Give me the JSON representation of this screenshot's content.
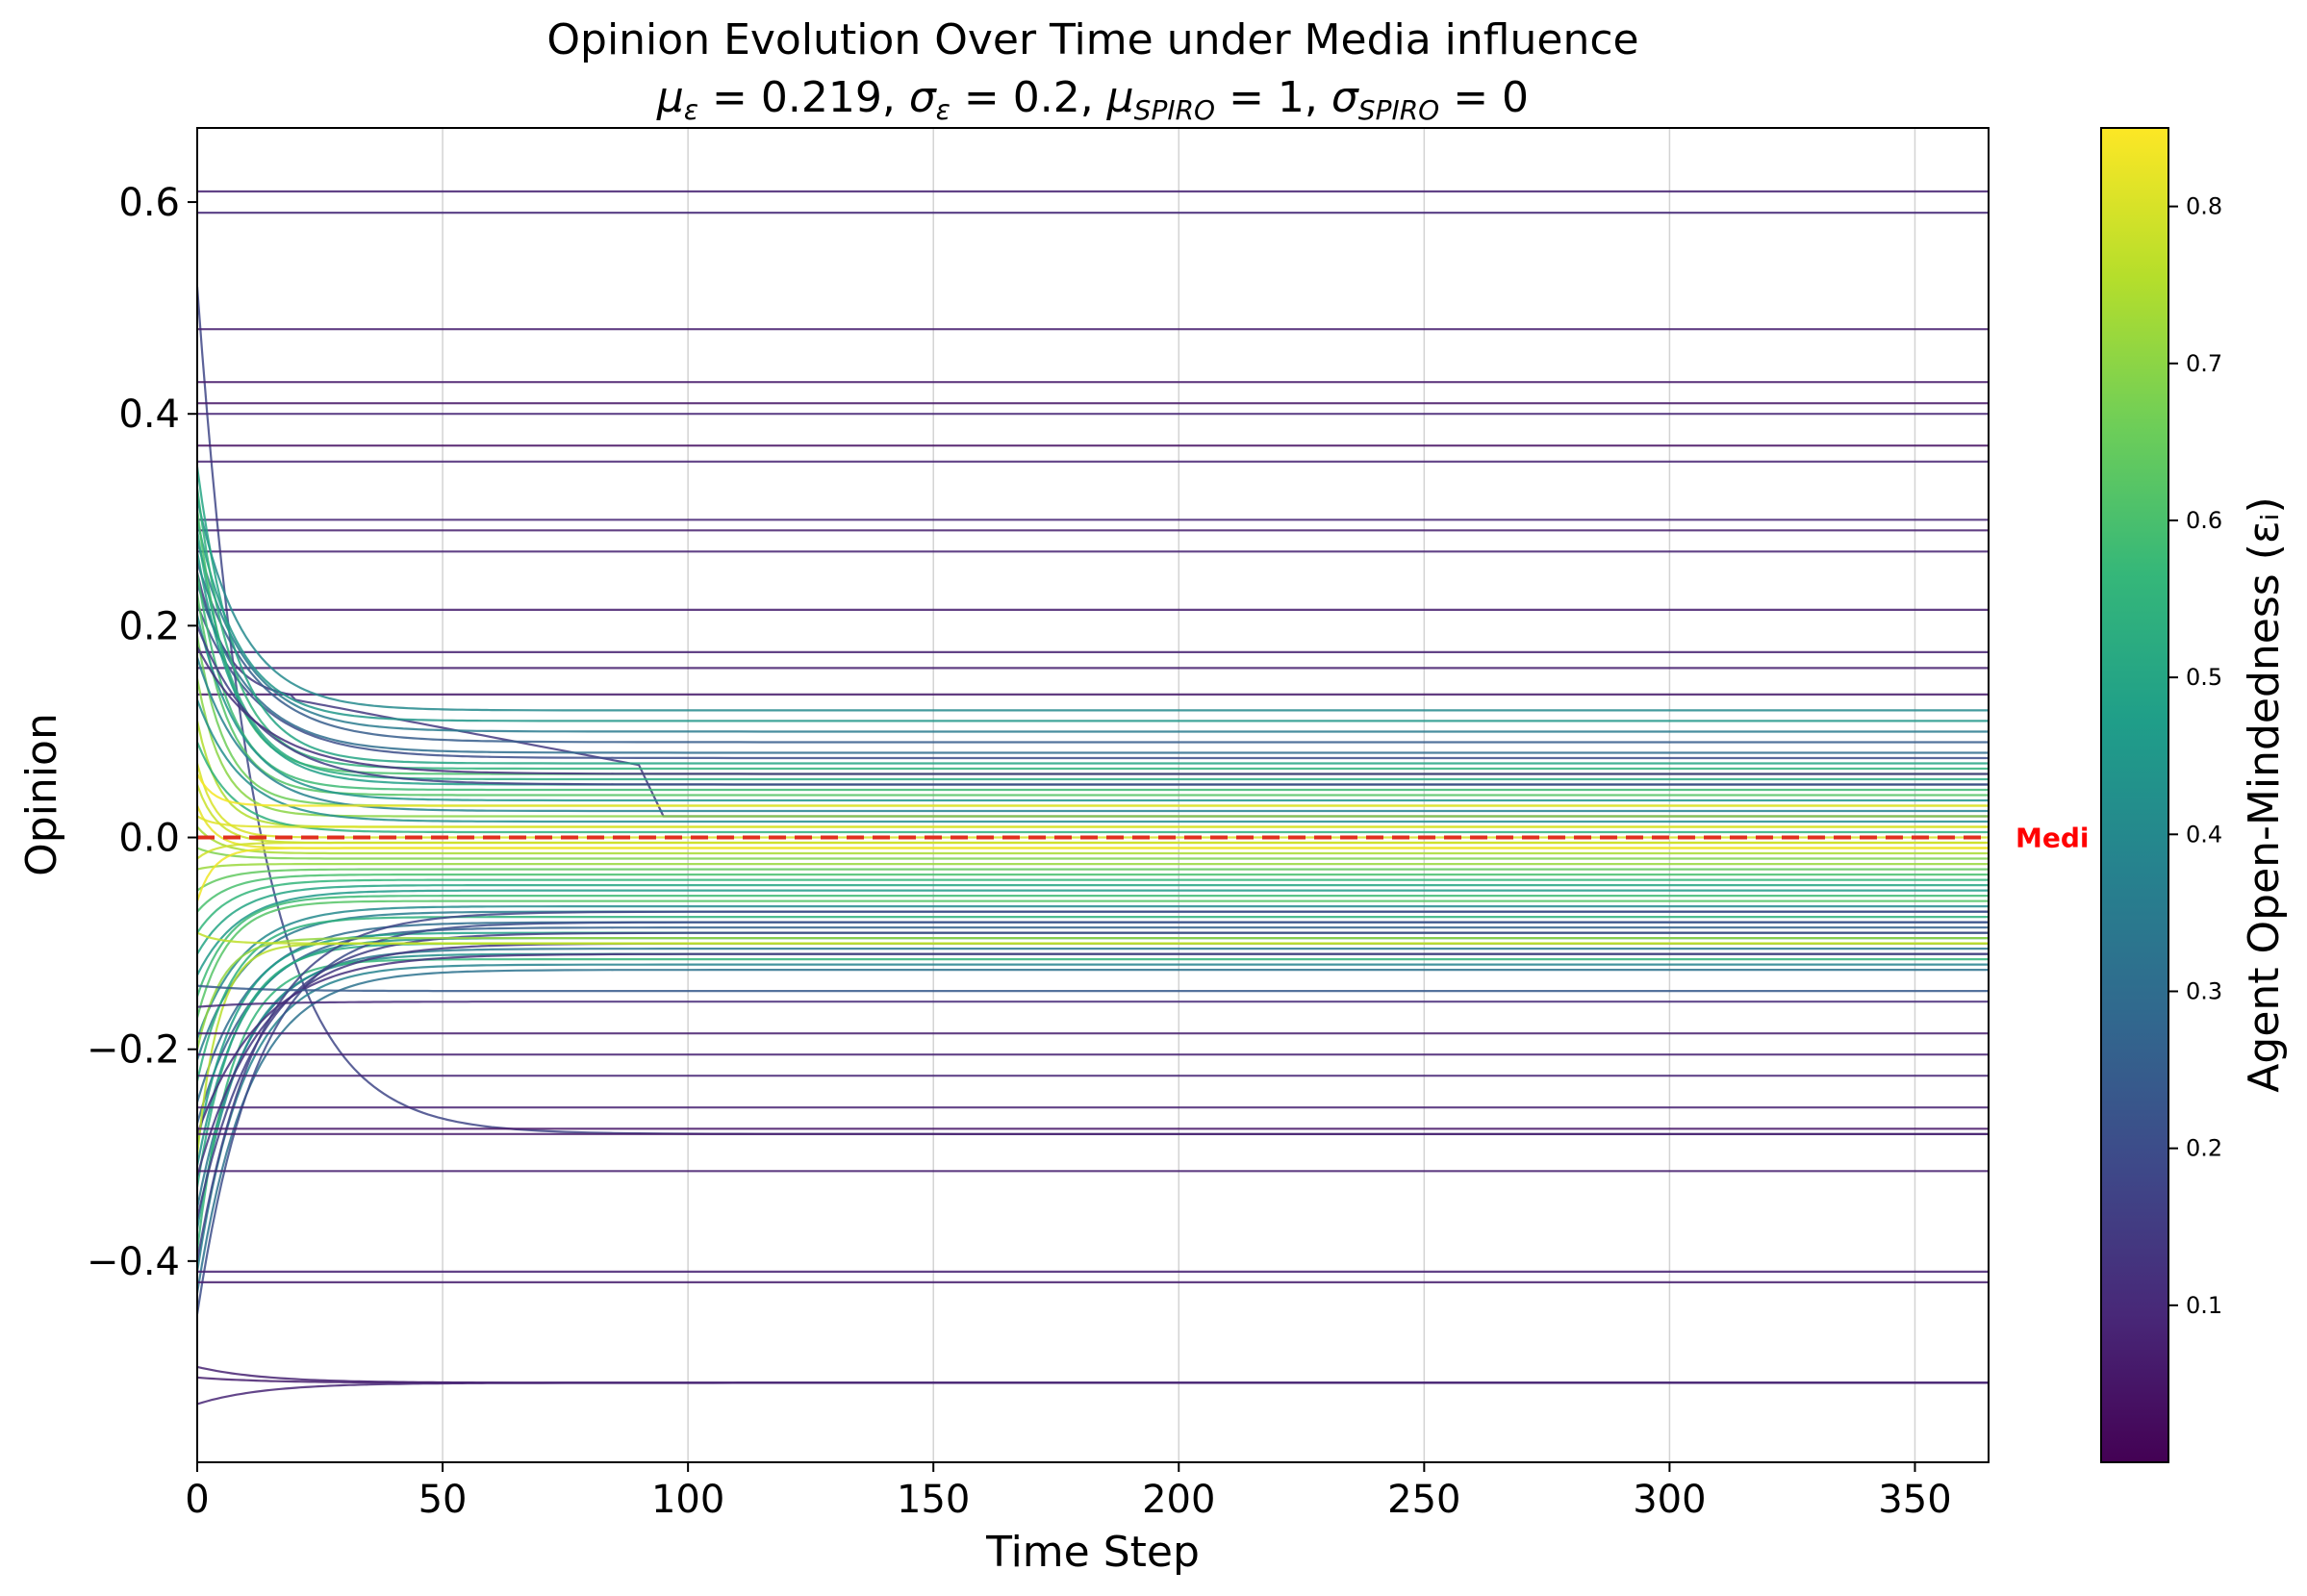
{
  "chart_data": {
    "type": "line",
    "title": "Opinion Evolution Over Time under Media influence",
    "subtitle": {
      "mu_eps_label": "μ",
      "eps_sub": "ε",
      "mu_eps_value": " = 0.219, ",
      "sigma_eps_label": "σ",
      "sigma_eps_value": " = 0.2, ",
      "mu_spiro_label": "μ",
      "spiro_sub": "SPIRO",
      "mu_spiro_value": " = 1, ",
      "sigma_spiro_label": "σ",
      "sigma_spiro_value": " = 0"
    },
    "xlabel": "Time Step",
    "ylabel": "Opinion",
    "xlim": [
      0,
      365
    ],
    "ylim": [
      -0.59,
      0.67
    ],
    "xticks": [
      0,
      50,
      100,
      150,
      200,
      250,
      300,
      350
    ],
    "xtick_labels": [
      "0",
      "50",
      "100",
      "150",
      "200",
      "250",
      "300",
      "350"
    ],
    "yticks": [
      -0.4,
      -0.2,
      0.0,
      0.2,
      0.4,
      0.6
    ],
    "ytick_labels": [
      "−0.4",
      "−0.2",
      "0.0",
      "0.2",
      "0.4",
      "0.6"
    ],
    "grid": "x-only",
    "media_line": {
      "value": 0.0,
      "label": "Medi",
      "color": "#ff0000"
    },
    "colorbar": {
      "label": "Agent Open-Mindedness (εᵢ)",
      "range": [
        0.0,
        0.85
      ],
      "ticks": [
        0.1,
        0.2,
        0.3,
        0.4,
        0.5,
        0.6,
        0.7,
        0.8
      ],
      "tick_labels": [
        "0.1",
        "0.2",
        "0.3",
        "0.4",
        "0.5",
        "0.6",
        "0.7",
        "0.8"
      ],
      "colormap": "viridis"
    },
    "series": [
      {
        "start": 0.61,
        "final": 0.61,
        "eps": 0.08
      },
      {
        "start": 0.59,
        "final": 0.59,
        "eps": 0.1
      },
      {
        "start": 0.52,
        "final": -0.28,
        "eps": 0.18
      },
      {
        "start": 0.48,
        "final": 0.48,
        "eps": 0.07
      },
      {
        "start": 0.43,
        "final": 0.43,
        "eps": 0.06
      },
      {
        "start": 0.41,
        "final": 0.41,
        "eps": 0.05
      },
      {
        "start": 0.4,
        "final": 0.4,
        "eps": 0.09
      },
      {
        "start": 0.37,
        "final": 0.37,
        "eps": 0.04
      },
      {
        "start": 0.355,
        "final": 0.355,
        "eps": 0.08
      },
      {
        "start": 0.3,
        "final": 0.3,
        "eps": 0.09
      },
      {
        "start": 0.29,
        "final": 0.29,
        "eps": 0.07
      },
      {
        "start": 0.27,
        "final": 0.27,
        "eps": 0.08
      },
      {
        "start": 0.215,
        "final": 0.215,
        "eps": 0.07
      },
      {
        "start": 0.175,
        "final": 0.175,
        "eps": 0.08
      },
      {
        "start": 0.16,
        "final": 0.16,
        "eps": 0.07
      },
      {
        "start": 0.135,
        "final": 0.135,
        "eps": 0.06
      },
      {
        "start": 0.25,
        "final": 0.02,
        "eps": 0.14,
        "mid": 0.13,
        "cross": 95
      },
      {
        "start": 0.32,
        "final": 0.12,
        "eps": 0.4
      },
      {
        "start": 0.3,
        "final": 0.11,
        "eps": 0.45
      },
      {
        "start": 0.28,
        "final": 0.1,
        "eps": 0.35
      },
      {
        "start": 0.26,
        "final": 0.09,
        "eps": 0.25
      },
      {
        "start": 0.24,
        "final": 0.08,
        "eps": 0.3
      },
      {
        "start": 0.22,
        "final": 0.075,
        "eps": 0.2
      },
      {
        "start": 0.35,
        "final": 0.07,
        "eps": 0.5
      },
      {
        "start": 0.33,
        "final": 0.065,
        "eps": 0.55
      },
      {
        "start": 0.31,
        "final": 0.06,
        "eps": 0.6
      },
      {
        "start": 0.29,
        "final": 0.055,
        "eps": 0.52
      },
      {
        "start": 0.27,
        "final": 0.05,
        "eps": 0.48
      },
      {
        "start": 0.25,
        "final": 0.045,
        "eps": 0.58
      },
      {
        "start": 0.23,
        "final": 0.04,
        "eps": 0.62
      },
      {
        "start": 0.21,
        "final": 0.035,
        "eps": 0.44
      },
      {
        "start": 0.19,
        "final": 0.03,
        "eps": 0.66
      },
      {
        "start": 0.17,
        "final": 0.025,
        "eps": 0.38
      },
      {
        "start": 0.15,
        "final": 0.02,
        "eps": 0.7
      },
      {
        "start": 0.13,
        "final": 0.015,
        "eps": 0.42
      },
      {
        "start": 0.11,
        "final": 0.01,
        "eps": 0.75
      },
      {
        "start": 0.09,
        "final": 0.005,
        "eps": 0.54
      },
      {
        "start": 0.07,
        "final": 0.0,
        "eps": 0.8
      },
      {
        "start": 0.05,
        "final": -0.005,
        "eps": 0.78
      },
      {
        "start": 0.03,
        "final": -0.01,
        "eps": 0.82
      },
      {
        "start": 0.01,
        "final": -0.015,
        "eps": 0.74
      },
      {
        "start": -0.01,
        "final": -0.02,
        "eps": 0.68
      },
      {
        "start": -0.03,
        "final": -0.025,
        "eps": 0.72
      },
      {
        "start": -0.05,
        "final": -0.03,
        "eps": 0.64
      },
      {
        "start": -0.07,
        "final": -0.035,
        "eps": 0.6
      },
      {
        "start": -0.09,
        "final": -0.04,
        "eps": 0.56
      },
      {
        "start": -0.11,
        "final": -0.045,
        "eps": 0.5
      },
      {
        "start": -0.13,
        "final": -0.05,
        "eps": 0.46
      },
      {
        "start": -0.15,
        "final": -0.055,
        "eps": 0.58
      },
      {
        "start": -0.17,
        "final": -0.06,
        "eps": 0.62
      },
      {
        "start": -0.19,
        "final": -0.065,
        "eps": 0.4
      },
      {
        "start": -0.21,
        "final": -0.07,
        "eps": 0.36
      },
      {
        "start": -0.23,
        "final": -0.075,
        "eps": 0.54
      },
      {
        "start": -0.25,
        "final": -0.08,
        "eps": 0.3
      },
      {
        "start": -0.27,
        "final": -0.085,
        "eps": 0.26
      },
      {
        "start": -0.29,
        "final": -0.09,
        "eps": 0.48
      },
      {
        "start": -0.31,
        "final": -0.095,
        "eps": 0.44
      },
      {
        "start": -0.33,
        "final": -0.1,
        "eps": 0.52
      },
      {
        "start": -0.35,
        "final": -0.105,
        "eps": 0.34
      },
      {
        "start": -0.37,
        "final": -0.11,
        "eps": 0.42
      },
      {
        "start": -0.39,
        "final": -0.115,
        "eps": 0.56
      },
      {
        "start": -0.41,
        "final": -0.12,
        "eps": 0.38
      },
      {
        "start": -0.43,
        "final": -0.125,
        "eps": 0.32
      },
      {
        "start": -0.45,
        "final": -0.08,
        "eps": 0.2
      },
      {
        "start": -0.4,
        "final": -0.07,
        "eps": 0.18
      },
      {
        "start": -0.36,
        "final": -0.09,
        "eps": 0.16
      },
      {
        "start": -0.32,
        "final": -0.1,
        "eps": 0.14
      },
      {
        "start": -0.28,
        "final": -0.11,
        "eps": 0.12
      },
      {
        "start": 0.2,
        "final": 0.05,
        "eps": 0.16
      },
      {
        "start": 0.18,
        "final": 0.06,
        "eps": 0.12
      },
      {
        "start": 0.06,
        "final": 0.03,
        "eps": 0.84
      },
      {
        "start": -0.06,
        "final": -0.01,
        "eps": 0.83
      },
      {
        "start": 0.02,
        "final": 0.01,
        "eps": 0.81
      },
      {
        "start": -0.02,
        "final": -0.005,
        "eps": 0.79
      },
      {
        "start": -0.3,
        "final": -0.1,
        "eps": 0.76
      },
      {
        "start": -0.2,
        "final": -0.095,
        "eps": 0.71
      },
      {
        "start": -0.09,
        "final": -0.1,
        "eps": 0.77
      },
      {
        "start": -0.14,
        "final": -0.145,
        "eps": 0.24
      },
      {
        "start": -0.16,
        "final": -0.155,
        "eps": 0.1
      },
      {
        "start": -0.185,
        "final": -0.185,
        "eps": 0.07
      },
      {
        "start": -0.205,
        "final": -0.205,
        "eps": 0.08
      },
      {
        "start": -0.225,
        "final": -0.225,
        "eps": 0.09
      },
      {
        "start": -0.255,
        "final": -0.255,
        "eps": 0.08
      },
      {
        "start": -0.275,
        "final": -0.275,
        "eps": 0.05
      },
      {
        "start": -0.28,
        "final": -0.28,
        "eps": 0.06
      },
      {
        "start": -0.315,
        "final": -0.315,
        "eps": 0.07
      },
      {
        "start": -0.41,
        "final": -0.41,
        "eps": 0.08
      },
      {
        "start": -0.42,
        "final": -0.42,
        "eps": 0.07
      },
      {
        "start": -0.5,
        "final": -0.515,
        "eps": 0.08
      },
      {
        "start": -0.51,
        "final": -0.515,
        "eps": 0.07
      },
      {
        "start": -0.535,
        "final": -0.515,
        "eps": 0.09
      }
    ]
  }
}
